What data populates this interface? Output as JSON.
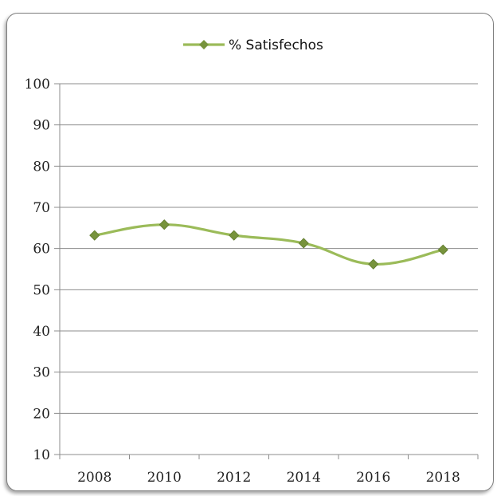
{
  "chart_data": {
    "type": "line",
    "legend": {
      "position": "top",
      "label": "% Satisfechos"
    },
    "categories": [
      "2008",
      "2010",
      "2012",
      "2014",
      "2016",
      "2018"
    ],
    "series": [
      {
        "name": "% Satisfechos",
        "values": [
          63.2,
          65.8,
          63.2,
          61.3,
          56.2,
          59.7
        ]
      }
    ],
    "ylim": [
      10,
      100
    ],
    "yticks": [
      10,
      20,
      30,
      40,
      50,
      60,
      70,
      80,
      90,
      100
    ],
    "grid": true,
    "colors": {
      "line": "#9bbb59",
      "marker": "#77933c",
      "grid": "#8c8c8c"
    }
  }
}
